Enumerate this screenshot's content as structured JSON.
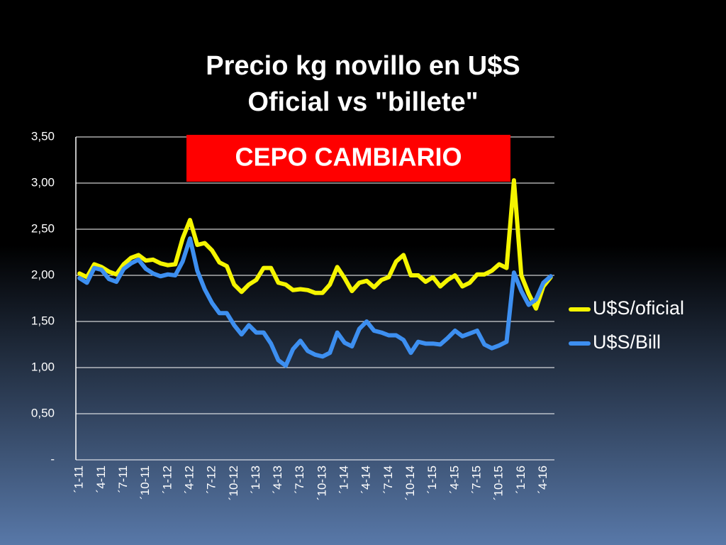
{
  "chart_data": {
    "type": "line",
    "title": "Precio kg novillo en U$S",
    "subtitle": "Oficial vs \"billete\"",
    "annotation": "CEPO CAMBIARIO",
    "annotation_color": "#ff0000",
    "categories": [
      "´1-11",
      null,
      null,
      "´4-11",
      null,
      null,
      "´7-11",
      null,
      null,
      "´10-11",
      null,
      null,
      "´1-12",
      null,
      null,
      "´4-12",
      null,
      null,
      "´7-12",
      null,
      null,
      "´10-12",
      null,
      null,
      "´1-13",
      null,
      null,
      "´4-13",
      null,
      null,
      "´7-13",
      null,
      null,
      "´10-13",
      null,
      null,
      "´1-14",
      null,
      null,
      "´4-14",
      null,
      null,
      "´7-14",
      null,
      null,
      "´10-14",
      null,
      null,
      "´1-15",
      null,
      null,
      "´4-15",
      null,
      null,
      "´7-15",
      null,
      null,
      "´10-15",
      null,
      null,
      "´1-16",
      null,
      null,
      "´4-16",
      null
    ],
    "series": [
      {
        "name": "U$S/oficial",
        "color": "#f5f500",
        "values": [
          2.02,
          1.98,
          2.12,
          2.09,
          2.04,
          2.01,
          2.12,
          2.19,
          2.22,
          2.16,
          2.17,
          2.13,
          2.11,
          2.12,
          2.4,
          2.6,
          2.33,
          2.35,
          2.27,
          2.14,
          2.1,
          1.9,
          1.82,
          1.9,
          1.95,
          2.08,
          2.08,
          1.92,
          1.9,
          1.84,
          1.85,
          1.84,
          1.81,
          1.81,
          1.9,
          2.09,
          1.97,
          1.83,
          1.92,
          1.94,
          1.87,
          1.95,
          1.98,
          2.15,
          2.22,
          2.0,
          2.0,
          1.93,
          1.98,
          1.88,
          1.95,
          2.0,
          1.88,
          1.92,
          2.01,
          2.01,
          2.05,
          2.12,
          2.08,
          3.03,
          2.0,
          1.8,
          1.64,
          1.88,
          1.98
        ]
      },
      {
        "name": "U$S/Bill",
        "color": "#3d8ff0",
        "values": [
          1.97,
          1.92,
          2.08,
          2.06,
          1.96,
          1.93,
          2.07,
          2.13,
          2.17,
          2.07,
          2.02,
          1.99,
          2.01,
          2.0,
          2.15,
          2.4,
          2.05,
          1.85,
          1.7,
          1.59,
          1.59,
          1.46,
          1.36,
          1.46,
          1.38,
          1.38,
          1.26,
          1.08,
          1.02,
          1.2,
          1.29,
          1.18,
          1.14,
          1.12,
          1.16,
          1.38,
          1.27,
          1.23,
          1.42,
          1.5,
          1.4,
          1.38,
          1.35,
          1.35,
          1.3,
          1.16,
          1.28,
          1.26,
          1.26,
          1.25,
          1.32,
          1.4,
          1.34,
          1.37,
          1.4,
          1.25,
          1.21,
          1.24,
          1.28,
          2.03,
          1.83,
          1.68,
          1.74,
          1.92,
          1.99
        ]
      }
    ],
    "ylim": [
      0,
      3.5
    ],
    "yticks": [
      {
        "value": 0,
        "label": "-"
      },
      {
        "value": 0.5,
        "label": "0,50"
      },
      {
        "value": 1,
        "label": "1,00"
      },
      {
        "value": 1.5,
        "label": "1,50"
      },
      {
        "value": 2,
        "label": "2,00"
      },
      {
        "value": 2.5,
        "label": "2,50"
      },
      {
        "value": 3,
        "label": "3,00"
      },
      {
        "value": 3.5,
        "label": "3,50"
      }
    ],
    "grid": true,
    "legend": "right"
  }
}
